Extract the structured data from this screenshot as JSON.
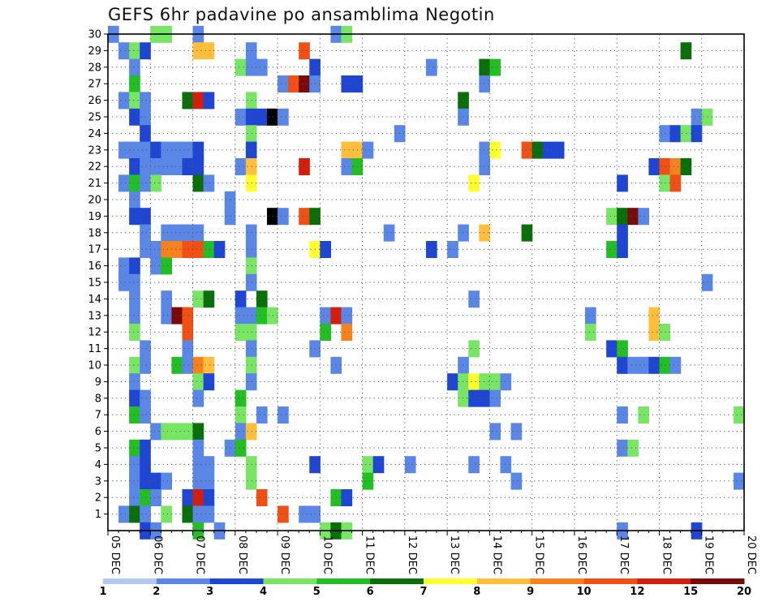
{
  "chart_data": {
    "type": "heatmap",
    "title": "GEFS 6hr padavine po ansamblima Negotin",
    "x_tick_labels": [
      "05 DEC",
      "06 DEC",
      "07 DEC",
      "08 DEC",
      "09 DEC",
      "10 DEC",
      "11 DEC",
      "12 DEC",
      "13 DEC",
      "14 DEC",
      "15 DEC",
      "16 DEC",
      "17 DEC",
      "18 DEC",
      "19 DEC",
      "20 DEC"
    ],
    "y_tick_labels": [
      "1",
      "2",
      "3",
      "4",
      "5",
      "6",
      "7",
      "8",
      "9",
      "10",
      "11",
      "12",
      "13",
      "14",
      "15",
      "16",
      "17",
      "18",
      "19",
      "20",
      "21",
      "22",
      "23",
      "24",
      "25",
      "26",
      "27",
      "28",
      "29",
      "30"
    ],
    "xlim": [
      0,
      60
    ],
    "ylim": [
      0,
      30
    ],
    "grid": true,
    "colorbar": {
      "labels": [
        "1",
        "2",
        "3",
        "4",
        "5",
        "6",
        "7",
        "8",
        "9",
        "10",
        "12",
        "15",
        "20"
      ],
      "colors": [
        "#b4c8f0",
        "#5a87e6",
        "#1e46d2",
        "#78e664",
        "#23be23",
        "#0a6e0a",
        "#ffff2d",
        "#ffbe3c",
        "#f5821e",
        "#f05014",
        "#d21e0a",
        "#780a0a"
      ]
    },
    "cells": [
      [
        0,
        30,
        1
      ],
      [
        4,
        30,
        3
      ],
      [
        5,
        30,
        3
      ],
      [
        8,
        30,
        1
      ],
      [
        21,
        30,
        1
      ],
      [
        22,
        30,
        3
      ],
      [
        1,
        29,
        1
      ],
      [
        2,
        29,
        3
      ],
      [
        3,
        29,
        2
      ],
      [
        8,
        29,
        7
      ],
      [
        9,
        29,
        7
      ],
      [
        13,
        29,
        1
      ],
      [
        18,
        29,
        9
      ],
      [
        54,
        29,
        5
      ],
      [
        2,
        28,
        1
      ],
      [
        12,
        28,
        3
      ],
      [
        13,
        28,
        1
      ],
      [
        14,
        28,
        1
      ],
      [
        19,
        28,
        2
      ],
      [
        30,
        28,
        1
      ],
      [
        35,
        28,
        5
      ],
      [
        36,
        28,
        4
      ],
      [
        2,
        27,
        4
      ],
      [
        16,
        27,
        1
      ],
      [
        17,
        27,
        9
      ],
      [
        18,
        27,
        11
      ],
      [
        19,
        27,
        1
      ],
      [
        22,
        27,
        2
      ],
      [
        23,
        27,
        2
      ],
      [
        35,
        27,
        1
      ],
      [
        1,
        26,
        1
      ],
      [
        2,
        26,
        3
      ],
      [
        3,
        26,
        1
      ],
      [
        7,
        26,
        5
      ],
      [
        8,
        26,
        10
      ],
      [
        9,
        26,
        2
      ],
      [
        13,
        26,
        3
      ],
      [
        33,
        26,
        5
      ],
      [
        2,
        25,
        2
      ],
      [
        3,
        25,
        1
      ],
      [
        12,
        25,
        1
      ],
      [
        13,
        25,
        2
      ],
      [
        14,
        25,
        2
      ],
      [
        15,
        25,
        12
      ],
      [
        16,
        25,
        1
      ],
      [
        33,
        25,
        1
      ],
      [
        55,
        25,
        1
      ],
      [
        56,
        25,
        3
      ],
      [
        3,
        24,
        2
      ],
      [
        13,
        24,
        3
      ],
      [
        27,
        24,
        1
      ],
      [
        52,
        24,
        1
      ],
      [
        53,
        24,
        2
      ],
      [
        54,
        24,
        3
      ],
      [
        55,
        24,
        2
      ],
      [
        1,
        23,
        1
      ],
      [
        2,
        23,
        1
      ],
      [
        3,
        23,
        1
      ],
      [
        4,
        23,
        2
      ],
      [
        5,
        23,
        1
      ],
      [
        6,
        23,
        1
      ],
      [
        7,
        23,
        1
      ],
      [
        8,
        23,
        2
      ],
      [
        13,
        23,
        2
      ],
      [
        22,
        23,
        7
      ],
      [
        23,
        23,
        7
      ],
      [
        24,
        23,
        1
      ],
      [
        35,
        23,
        1
      ],
      [
        36,
        23,
        6
      ],
      [
        39,
        23,
        9
      ],
      [
        40,
        23,
        5
      ],
      [
        41,
        23,
        2
      ],
      [
        42,
        23,
        2
      ],
      [
        2,
        22,
        2
      ],
      [
        3,
        22,
        1
      ],
      [
        4,
        22,
        1
      ],
      [
        5,
        22,
        1
      ],
      [
        6,
        22,
        1
      ],
      [
        7,
        22,
        2
      ],
      [
        8,
        22,
        2
      ],
      [
        12,
        22,
        1
      ],
      [
        13,
        22,
        7
      ],
      [
        18,
        22,
        10
      ],
      [
        22,
        22,
        1
      ],
      [
        23,
        22,
        4
      ],
      [
        35,
        22,
        1
      ],
      [
        51,
        22,
        2
      ],
      [
        52,
        22,
        9
      ],
      [
        53,
        22,
        8
      ],
      [
        54,
        22,
        5
      ],
      [
        1,
        21,
        1
      ],
      [
        2,
        21,
        4
      ],
      [
        3,
        21,
        1
      ],
      [
        4,
        21,
        3
      ],
      [
        8,
        21,
        5
      ],
      [
        9,
        21,
        1
      ],
      [
        13,
        21,
        6
      ],
      [
        34,
        21,
        6
      ],
      [
        48,
        21,
        2
      ],
      [
        52,
        21,
        3
      ],
      [
        53,
        21,
        9
      ],
      [
        2,
        20,
        1
      ],
      [
        11,
        20,
        1
      ],
      [
        2,
        19,
        2
      ],
      [
        3,
        19,
        2
      ],
      [
        11,
        19,
        1
      ],
      [
        15,
        19,
        12
      ],
      [
        16,
        19,
        1
      ],
      [
        18,
        19,
        9
      ],
      [
        19,
        19,
        5
      ],
      [
        47,
        19,
        3
      ],
      [
        48,
        19,
        5
      ],
      [
        49,
        19,
        11
      ],
      [
        50,
        19,
        1
      ],
      [
        3,
        18,
        1
      ],
      [
        5,
        18,
        1
      ],
      [
        6,
        18,
        1
      ],
      [
        7,
        18,
        1
      ],
      [
        8,
        18,
        1
      ],
      [
        13,
        18,
        1
      ],
      [
        26,
        18,
        1
      ],
      [
        33,
        18,
        1
      ],
      [
        35,
        18,
        7
      ],
      [
        39,
        18,
        5
      ],
      [
        48,
        18,
        2
      ],
      [
        3,
        17,
        1
      ],
      [
        4,
        17,
        1
      ],
      [
        5,
        17,
        8
      ],
      [
        6,
        17,
        8
      ],
      [
        7,
        17,
        9
      ],
      [
        8,
        17,
        9
      ],
      [
        9,
        17,
        4
      ],
      [
        10,
        17,
        2
      ],
      [
        13,
        17,
        1
      ],
      [
        19,
        17,
        6
      ],
      [
        20,
        17,
        2
      ],
      [
        30,
        17,
        2
      ],
      [
        32,
        17,
        1
      ],
      [
        47,
        17,
        4
      ],
      [
        48,
        17,
        2
      ],
      [
        1,
        16,
        1
      ],
      [
        2,
        16,
        2
      ],
      [
        4,
        16,
        1
      ],
      [
        5,
        16,
        4
      ],
      [
        13,
        16,
        3
      ],
      [
        1,
        15,
        1
      ],
      [
        2,
        15,
        1
      ],
      [
        13,
        15,
        1
      ],
      [
        56,
        15,
        1
      ],
      [
        2,
        14,
        1
      ],
      [
        5,
        14,
        1
      ],
      [
        8,
        14,
        3
      ],
      [
        9,
        14,
        5
      ],
      [
        12,
        14,
        2
      ],
      [
        14,
        14,
        5
      ],
      [
        34,
        14,
        1
      ],
      [
        2,
        13,
        1
      ],
      [
        5,
        13,
        1
      ],
      [
        6,
        13,
        11
      ],
      [
        7,
        13,
        9
      ],
      [
        12,
        13,
        1
      ],
      [
        13,
        13,
        1
      ],
      [
        14,
        13,
        4
      ],
      [
        15,
        13,
        3
      ],
      [
        20,
        13,
        1
      ],
      [
        21,
        13,
        10
      ],
      [
        22,
        13,
        1
      ],
      [
        45,
        13,
        1
      ],
      [
        51,
        13,
        7
      ],
      [
        2,
        12,
        3
      ],
      [
        7,
        12,
        9
      ],
      [
        12,
        12,
        3
      ],
      [
        13,
        12,
        3
      ],
      [
        20,
        12,
        4
      ],
      [
        22,
        12,
        8
      ],
      [
        45,
        12,
        3
      ],
      [
        51,
        12,
        7
      ],
      [
        52,
        12,
        3
      ],
      [
        3,
        11,
        1
      ],
      [
        7,
        11,
        1
      ],
      [
        13,
        11,
        1
      ],
      [
        19,
        11,
        1
      ],
      [
        34,
        11,
        3
      ],
      [
        47,
        11,
        2
      ],
      [
        48,
        11,
        4
      ],
      [
        2,
        10,
        3
      ],
      [
        3,
        10,
        1
      ],
      [
        6,
        10,
        4
      ],
      [
        7,
        10,
        1
      ],
      [
        8,
        10,
        8
      ],
      [
        9,
        10,
        7
      ],
      [
        13,
        10,
        3
      ],
      [
        21,
        10,
        1
      ],
      [
        33,
        10,
        1
      ],
      [
        48,
        10,
        2
      ],
      [
        49,
        10,
        1
      ],
      [
        50,
        10,
        1
      ],
      [
        51,
        10,
        2
      ],
      [
        52,
        10,
        4
      ],
      [
        53,
        10,
        1
      ],
      [
        2,
        9,
        1
      ],
      [
        8,
        9,
        3
      ],
      [
        9,
        9,
        2
      ],
      [
        13,
        9,
        1
      ],
      [
        32,
        9,
        2
      ],
      [
        33,
        9,
        3
      ],
      [
        34,
        9,
        6
      ],
      [
        35,
        9,
        3
      ],
      [
        36,
        9,
        3
      ],
      [
        37,
        9,
        1
      ],
      [
        2,
        8,
        2
      ],
      [
        3,
        8,
        1
      ],
      [
        8,
        8,
        1
      ],
      [
        12,
        8,
        4
      ],
      [
        33,
        8,
        3
      ],
      [
        34,
        8,
        2
      ],
      [
        35,
        8,
        2
      ],
      [
        36,
        8,
        1
      ],
      [
        2,
        7,
        4
      ],
      [
        3,
        7,
        1
      ],
      [
        12,
        7,
        3
      ],
      [
        14,
        7,
        1
      ],
      [
        16,
        7,
        1
      ],
      [
        48,
        7,
        1
      ],
      [
        50,
        7,
        3
      ],
      [
        59,
        7,
        3
      ],
      [
        4,
        6,
        1
      ],
      [
        5,
        6,
        3
      ],
      [
        6,
        6,
        3
      ],
      [
        7,
        6,
        3
      ],
      [
        8,
        6,
        5
      ],
      [
        12,
        6,
        1
      ],
      [
        13,
        6,
        7
      ],
      [
        36,
        6,
        1
      ],
      [
        38,
        6,
        1
      ],
      [
        2,
        5,
        4
      ],
      [
        3,
        5,
        2
      ],
      [
        8,
        5,
        1
      ],
      [
        11,
        5,
        1
      ],
      [
        12,
        5,
        4
      ],
      [
        48,
        5,
        1
      ],
      [
        49,
        5,
        3
      ],
      [
        2,
        4,
        1
      ],
      [
        3,
        4,
        2
      ],
      [
        8,
        4,
        1
      ],
      [
        9,
        4,
        1
      ],
      [
        13,
        4,
        3
      ],
      [
        19,
        4,
        2
      ],
      [
        24,
        4,
        3
      ],
      [
        25,
        4,
        2
      ],
      [
        28,
        4,
        1
      ],
      [
        34,
        4,
        1
      ],
      [
        37,
        4,
        1
      ],
      [
        2,
        3,
        1
      ],
      [
        3,
        3,
        2
      ],
      [
        4,
        3,
        2
      ],
      [
        5,
        3,
        1
      ],
      [
        8,
        3,
        1
      ],
      [
        9,
        3,
        1
      ],
      [
        13,
        3,
        3
      ],
      [
        24,
        3,
        4
      ],
      [
        38,
        3,
        1
      ],
      [
        59,
        3,
        1
      ],
      [
        2,
        2,
        1
      ],
      [
        3,
        2,
        4
      ],
      [
        4,
        2,
        1
      ],
      [
        7,
        2,
        2
      ],
      [
        8,
        2,
        10
      ],
      [
        9,
        2,
        2
      ],
      [
        14,
        2,
        9
      ],
      [
        21,
        2,
        4
      ],
      [
        22,
        2,
        2
      ],
      [
        1,
        1,
        1
      ],
      [
        2,
        1,
        5
      ],
      [
        3,
        1,
        1
      ],
      [
        5,
        1,
        3
      ],
      [
        7,
        1,
        5
      ],
      [
        8,
        1,
        1
      ],
      [
        9,
        1,
        1
      ],
      [
        16,
        1,
        9
      ],
      [
        18,
        1,
        1
      ],
      [
        19,
        1,
        1
      ],
      [
        3,
        0,
        2
      ],
      [
        4,
        0,
        1
      ],
      [
        8,
        0,
        4
      ],
      [
        10,
        0,
        1
      ],
      [
        20,
        0,
        3
      ],
      [
        21,
        0,
        5
      ],
      [
        22,
        0,
        3
      ],
      [
        48,
        0,
        1
      ],
      [
        55,
        0,
        2
      ]
    ]
  }
}
